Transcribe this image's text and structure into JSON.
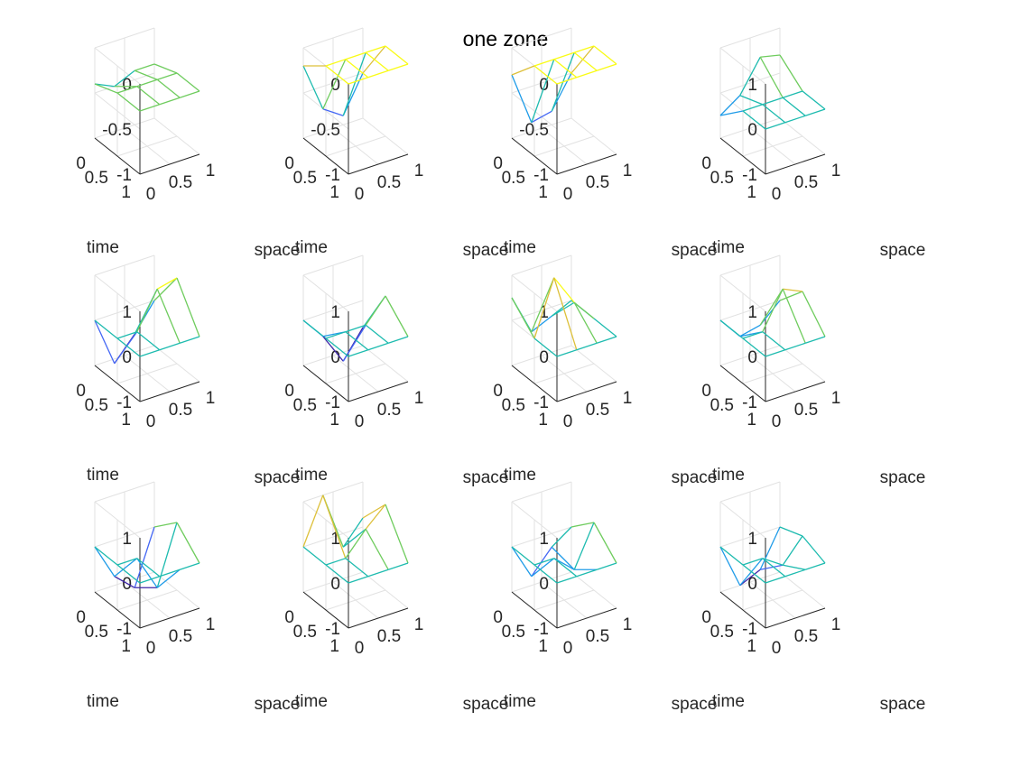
{
  "figure": {
    "title": "one zone"
  },
  "colors": {
    "axis": "#262626",
    "grid": "#e2e2e2",
    "colormap": [
      "#3e26a8",
      "#4467f4",
      "#1e9be8",
      "#1dbbaf",
      "#6fcc5e",
      "#ddc03a",
      "#f9fb15"
    ]
  },
  "chart_data": {
    "type": "surface3d",
    "layout": {
      "rows": 3,
      "cols": 4
    },
    "shared_axes": {
      "xlabel": "space",
      "ylabel": "time",
      "xlim": [
        0,
        1
      ],
      "ylim": [
        0,
        1
      ],
      "x_ticks": [
        "0",
        "0.5",
        "1"
      ],
      "y_ticks": [
        "0",
        "0.5",
        "1"
      ]
    },
    "grid_x": [
      0,
      0.33,
      0.67,
      1
    ],
    "grid_t": [
      0,
      0.5,
      1
    ],
    "subplots": [
      {
        "zlim": [
          -1,
          0
        ],
        "z_ticks": [
          "-1",
          "-0.5",
          "0"
        ],
        "z": [
          [
            -0.4,
            -0.5,
            -0.4,
            -0.4
          ],
          [
            -0.3,
            -0.3,
            -0.3,
            -0.3
          ],
          [
            -0.3,
            -0.3,
            -0.3,
            -0.3
          ]
        ]
      },
      {
        "zlim": [
          -1,
          0
        ],
        "z_ticks": [
          "-1",
          "-0.5",
          "0"
        ],
        "z": [
          [
            -0.2,
            -0.75,
            -0.9,
            -0.5
          ],
          [
            0,
            0,
            0,
            0
          ],
          [
            0,
            0,
            0,
            0
          ]
        ]
      },
      {
        "zlim": [
          -1,
          0
        ],
        "z_ticks": [
          "-1",
          "-0.5",
          "0"
        ],
        "z": [
          [
            -0.3,
            -0.9,
            -0.85,
            -0.5
          ],
          [
            0,
            0,
            0,
            0
          ],
          [
            0,
            0,
            0,
            0
          ]
        ]
      },
      {
        "zlim": [
          -1,
          1
        ],
        "z_ticks": [
          "-1",
          "0",
          "1"
        ],
        "z": [
          [
            -0.5,
            -0.2,
            0.5,
            0.4
          ],
          [
            0,
            0,
            0,
            0
          ],
          [
            0,
            0,
            0,
            0
          ]
        ]
      },
      {
        "zlim": [
          -1,
          1
        ],
        "z_ticks": [
          "-1",
          "0",
          "1"
        ],
        "z": [
          [
            0,
            -1.1,
            -0.6,
            0
          ],
          [
            0,
            0,
            0.8,
            0.9
          ],
          [
            0,
            0,
            0,
            0
          ]
        ]
      },
      {
        "zlim": [
          -1,
          1
        ],
        "z_ticks": [
          "-1",
          "0",
          "1"
        ],
        "z": [
          [
            0,
            -0.5,
            -1.2,
            -0.6
          ],
          [
            0,
            0,
            0,
            0.5
          ],
          [
            0,
            0,
            0,
            0
          ]
        ]
      },
      {
        "zlim": [
          -1,
          1
        ],
        "z_ticks": [
          "-1",
          "0",
          "1"
        ],
        "z": [
          [
            0.5,
            -0.4,
            -0.2,
            0
          ],
          [
            0,
            1.2,
            0.5,
            0
          ],
          [
            0,
            0,
            0,
            0
          ]
        ]
      },
      {
        "zlim": [
          -1,
          1
        ],
        "z_ticks": [
          "-1",
          "0",
          "1"
        ],
        "z": [
          [
            0,
            -0.5,
            -0.4,
            0
          ],
          [
            0,
            0,
            0.8,
            0.6
          ],
          [
            0,
            0,
            0,
            0
          ]
        ]
      },
      {
        "zlim": [
          -1,
          1
        ],
        "z_ticks": [
          "-1",
          "0",
          "1"
        ],
        "z": [
          [
            0,
            -0.8,
            -1.2,
            0
          ],
          [
            0,
            0,
            -0.8,
            0.5
          ],
          [
            0,
            0,
            0,
            0
          ]
        ]
      },
      {
        "zlim": [
          -1,
          1
        ],
        "z_ticks": [
          "-1",
          "0",
          "1"
        ],
        "z": [
          [
            0,
            1.0,
            -0.3,
            0.2
          ],
          [
            0,
            0,
            0.5,
            0.9
          ],
          [
            0,
            0,
            0,
            0
          ]
        ]
      },
      {
        "zlim": [
          -1,
          1
        ],
        "z_ticks": [
          "-1",
          "0",
          "1"
        ],
        "z": [
          [
            0,
            -0.8,
            -0.3,
            0
          ],
          [
            0,
            0,
            -0.4,
            0.5
          ],
          [
            0,
            0,
            0,
            0
          ]
        ]
      },
      {
        "zlim": [
          -1,
          1
        ],
        "z_ticks": [
          "-1",
          "0",
          "1"
        ],
        "z": [
          [
            0,
            -1.0,
            -0.8,
            0
          ],
          [
            0,
            0,
            -0.3,
            0.2
          ],
          [
            0,
            0,
            0,
            0
          ]
        ]
      }
    ]
  }
}
